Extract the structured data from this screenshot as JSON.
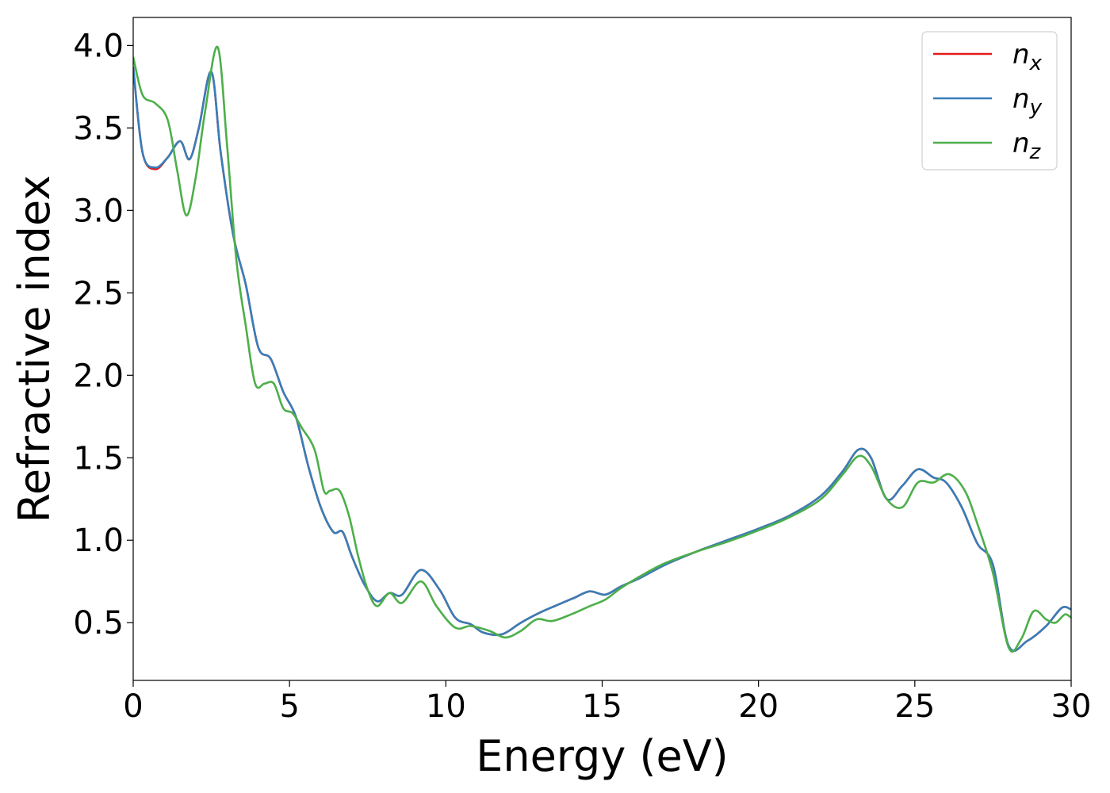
{
  "chart_data": {
    "type": "line",
    "title": "",
    "xlabel": "Energy (eV)",
    "ylabel": "Refractive index",
    "xlim": [
      0,
      30
    ],
    "ylim": [
      0.15,
      4.17
    ],
    "xticks": [
      0,
      5,
      10,
      15,
      20,
      25,
      30
    ],
    "yticks": [
      0.5,
      1.0,
      1.5,
      2.0,
      2.5,
      3.0,
      3.5,
      4.0
    ],
    "grid": false,
    "legend_position": "top-right",
    "series": [
      {
        "name": "n",
        "subscript": "x",
        "color": "#e41a1c",
        "x": [
          0,
          0.3,
          0.7,
          1.1,
          1.5,
          1.8,
          2.1,
          2.5,
          2.8,
          3.2,
          3.6,
          4.0,
          4.4,
          4.8,
          5.2,
          5.6,
          6.0,
          6.4,
          6.7,
          7.0,
          7.4,
          7.8,
          8.2,
          8.6,
          9.2,
          9.8,
          10.3,
          10.8,
          11.2,
          11.8,
          12.4,
          13.0,
          13.6,
          14.1,
          14.6,
          15.1,
          15.6,
          16.2,
          17.0,
          18.0,
          19.0,
          20.0,
          21.0,
          22.0,
          22.7,
          23.2,
          23.6,
          24.1,
          24.6,
          25.1,
          25.6,
          26.0,
          26.5,
          27.0,
          27.5,
          28.0,
          28.6,
          29.2,
          29.7,
          30.0
        ],
        "values": [
          3.87,
          3.35,
          3.25,
          3.32,
          3.42,
          3.31,
          3.5,
          3.84,
          3.35,
          2.85,
          2.55,
          2.17,
          2.1,
          1.9,
          1.75,
          1.45,
          1.2,
          1.05,
          1.05,
          0.9,
          0.73,
          0.63,
          0.68,
          0.67,
          0.82,
          0.7,
          0.53,
          0.49,
          0.44,
          0.43,
          0.5,
          0.56,
          0.61,
          0.65,
          0.69,
          0.67,
          0.72,
          0.77,
          0.85,
          0.93,
          1.0,
          1.07,
          1.15,
          1.27,
          1.42,
          1.55,
          1.5,
          1.25,
          1.33,
          1.43,
          1.38,
          1.35,
          1.2,
          0.98,
          0.85,
          0.36,
          0.39,
          0.48,
          0.59,
          0.58
        ]
      },
      {
        "name": "n",
        "subscript": "y",
        "color": "#377eb8",
        "x": [
          0,
          0.3,
          0.7,
          1.1,
          1.5,
          1.8,
          2.1,
          2.5,
          2.8,
          3.2,
          3.6,
          4.0,
          4.4,
          4.8,
          5.2,
          5.6,
          6.0,
          6.4,
          6.7,
          7.0,
          7.4,
          7.8,
          8.2,
          8.6,
          9.2,
          9.8,
          10.3,
          10.8,
          11.2,
          11.8,
          12.4,
          13.0,
          13.6,
          14.1,
          14.6,
          15.1,
          15.6,
          16.2,
          17.0,
          18.0,
          19.0,
          20.0,
          21.0,
          22.0,
          22.7,
          23.2,
          23.6,
          24.1,
          24.6,
          25.1,
          25.6,
          26.0,
          26.5,
          27.0,
          27.5,
          28.0,
          28.6,
          29.2,
          29.7,
          30.0
        ],
        "values": [
          3.87,
          3.35,
          3.26,
          3.32,
          3.42,
          3.31,
          3.5,
          3.84,
          3.35,
          2.85,
          2.55,
          2.17,
          2.1,
          1.9,
          1.75,
          1.45,
          1.2,
          1.05,
          1.05,
          0.9,
          0.73,
          0.63,
          0.68,
          0.67,
          0.82,
          0.7,
          0.53,
          0.49,
          0.44,
          0.43,
          0.5,
          0.56,
          0.61,
          0.65,
          0.69,
          0.67,
          0.72,
          0.77,
          0.85,
          0.93,
          1.0,
          1.07,
          1.15,
          1.27,
          1.42,
          1.55,
          1.5,
          1.25,
          1.33,
          1.43,
          1.38,
          1.35,
          1.2,
          0.98,
          0.85,
          0.36,
          0.39,
          0.48,
          0.59,
          0.58
        ]
      },
      {
        "name": "n",
        "subscript": "z",
        "color": "#4daf4a",
        "x": [
          0,
          0.3,
          0.7,
          1.1,
          1.4,
          1.7,
          2.0,
          2.3,
          2.7,
          3.0,
          3.3,
          3.6,
          3.9,
          4.2,
          4.5,
          4.8,
          5.1,
          5.4,
          5.8,
          6.1,
          6.3,
          6.6,
          6.9,
          7.2,
          7.5,
          7.8,
          8.2,
          8.6,
          9.2,
          9.7,
          10.3,
          10.8,
          11.4,
          11.9,
          12.4,
          12.9,
          13.4,
          14.0,
          14.6,
          15.1,
          15.6,
          16.2,
          17.0,
          18.0,
          19.0,
          20.0,
          21.0,
          22.0,
          22.7,
          23.2,
          23.6,
          24.1,
          24.6,
          25.1,
          25.6,
          26.1,
          26.6,
          27.0,
          27.5,
          28.0,
          28.4,
          28.8,
          29.2,
          29.5,
          29.8,
          30.0
        ],
        "values": [
          3.93,
          3.7,
          3.65,
          3.55,
          3.25,
          2.97,
          3.2,
          3.6,
          3.99,
          3.4,
          2.7,
          2.3,
          1.95,
          1.95,
          1.95,
          1.8,
          1.77,
          1.68,
          1.55,
          1.3,
          1.3,
          1.3,
          1.15,
          0.9,
          0.7,
          0.6,
          0.68,
          0.62,
          0.75,
          0.6,
          0.47,
          0.48,
          0.45,
          0.41,
          0.45,
          0.52,
          0.51,
          0.55,
          0.6,
          0.64,
          0.71,
          0.78,
          0.86,
          0.93,
          0.99,
          1.06,
          1.14,
          1.25,
          1.4,
          1.51,
          1.45,
          1.25,
          1.2,
          1.35,
          1.35,
          1.4,
          1.3,
          1.1,
          0.8,
          0.35,
          0.4,
          0.57,
          0.52,
          0.5,
          0.55,
          0.53
        ]
      }
    ]
  }
}
